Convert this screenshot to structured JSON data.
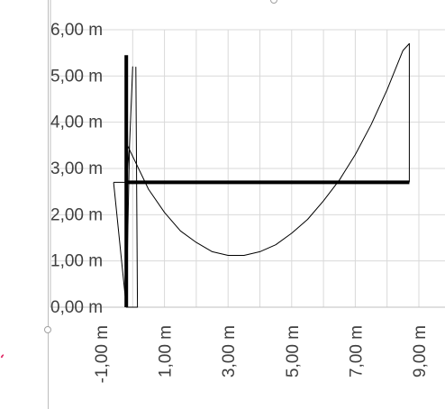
{
  "chart_data": {
    "type": "scatter",
    "title": "",
    "xlabel": "",
    "ylabel": "",
    "xlim": [
      -1.0,
      9.0
    ],
    "ylim": [
      0.0,
      6.0
    ],
    "x_ticks": [
      "-1,00 m",
      "1,00 m",
      "3,00 m",
      "5,00 m",
      "7,00 m",
      "9,00 m"
    ],
    "x_tick_values": [
      -1,
      1,
      3,
      5,
      7,
      9
    ],
    "y_ticks": [
      "0,00 m",
      "1,00 m",
      "2,00 m",
      "3,00 m",
      "4,00 m",
      "5,00 m",
      "6,00 m"
    ],
    "y_tick_values": [
      0,
      1,
      2,
      3,
      4,
      5,
      6
    ],
    "grid": true,
    "legend": "none",
    "series": [
      {
        "role": "vertical-bar",
        "width": "thick",
        "x": [
          -0.2,
          -0.2
        ],
        "y": [
          0.0,
          5.45
        ]
      },
      {
        "role": "horizontal-bar",
        "width": "thick",
        "x": [
          -0.2,
          8.7
        ],
        "y": [
          2.7,
          2.7
        ]
      },
      {
        "role": "left-profile",
        "width": "thin",
        "x": [
          -0.6,
          -0.2,
          -0.1,
          0.0,
          -0.1,
          -0.2,
          -0.6
        ],
        "y": [
          2.7,
          2.7,
          3.5,
          5.2,
          3.5,
          0.0,
          2.7
        ]
      },
      {
        "role": "curve",
        "width": "thin",
        "x": [
          -0.2,
          0.5,
          1.0,
          1.5,
          2.0,
          2.5,
          3.0,
          3.5,
          4.0,
          4.5,
          5.0,
          5.5,
          6.0,
          6.5,
          7.0,
          7.5,
          8.0,
          8.5,
          8.7,
          8.7
        ],
        "y": [
          3.55,
          2.55,
          2.05,
          1.65,
          1.4,
          1.2,
          1.12,
          1.12,
          1.2,
          1.35,
          1.6,
          1.9,
          2.3,
          2.75,
          3.3,
          3.95,
          4.7,
          5.55,
          5.7,
          2.7
        ]
      },
      {
        "role": "small-spike",
        "width": "thin",
        "x": [
          -0.2,
          0.15,
          0.1
        ],
        "y": [
          0.0,
          0.0,
          5.2
        ]
      }
    ],
    "colors": {
      "line": "#000000",
      "grid": "#d9d9d9",
      "axis": "#bfbfbf",
      "tick_text": "#404040"
    }
  }
}
